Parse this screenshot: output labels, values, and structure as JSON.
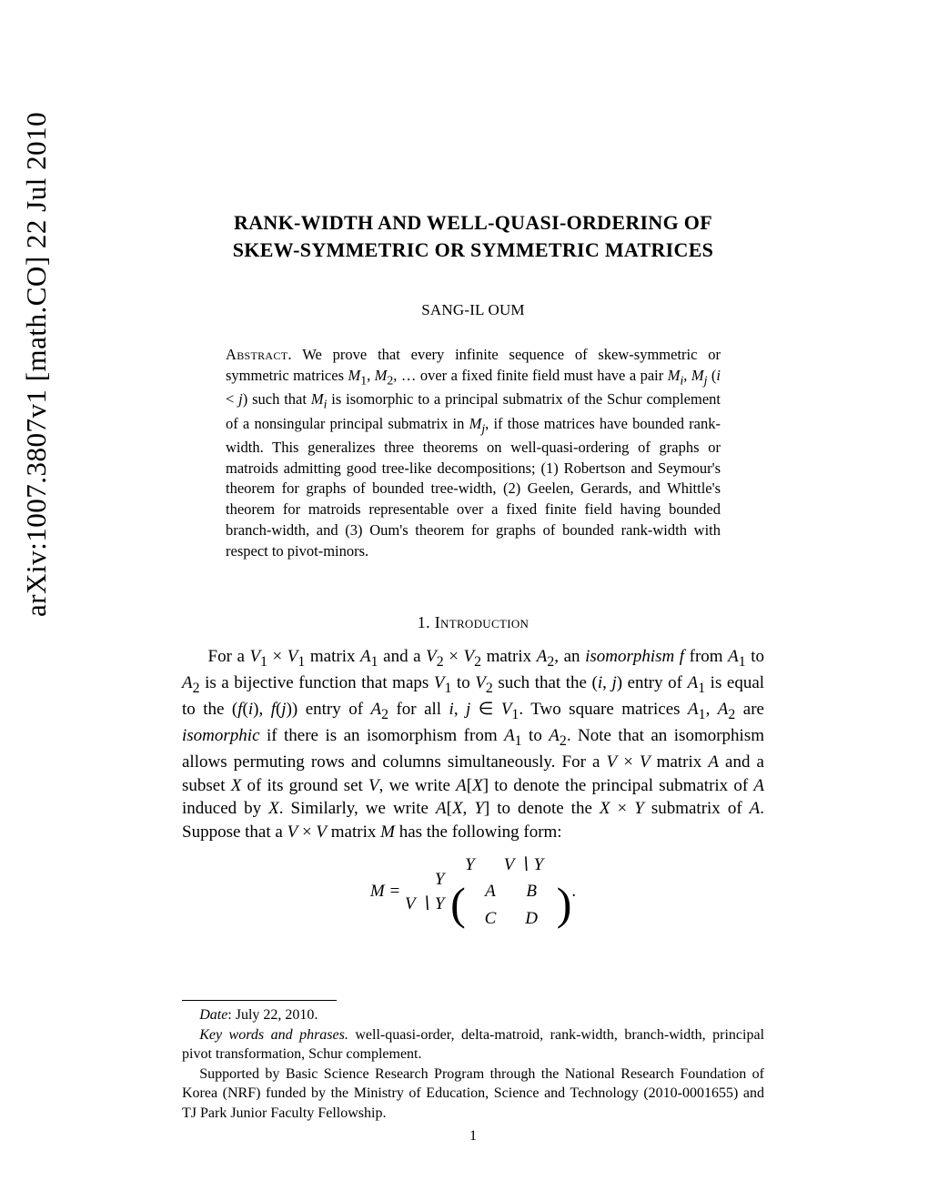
{
  "arxiv_stamp": "arXiv:1007.3807v1  [math.CO]  22 Jul 2010",
  "title_line1": "RANK-WIDTH AND WELL-QUASI-ORDERING OF",
  "title_line2": "SKEW-SYMMETRIC OR SYMMETRIC MATRICES",
  "author": "SANG-IL OUM",
  "abstract_label": "Abstract.",
  "abstract_text": "We prove that every infinite sequence of skew-symmetric or symmetric matrices M₁, M₂, … over a fixed finite field must have a pair Mᵢ, Mⱼ (i < j) such that Mᵢ is isomorphic to a principal submatrix of the Schur complement of a nonsingular principal submatrix in Mⱼ, if those matrices have bounded rank-width. This generalizes three theorems on well-quasi-ordering of graphs or matroids admitting good tree-like decompositions; (1) Robertson and Seymour's theorem for graphs of bounded tree-width, (2) Geelen, Gerards, and Whittle's theorem for matroids representable over a fixed finite field having bounded branch-width, and (3) Oum's theorem for graphs of bounded rank-width with respect to pivot-minors.",
  "section_number": "1.",
  "section_title": "Introduction",
  "intro_para": "For a V₁ × V₁ matrix A₁ and a V₂ × V₂ matrix A₂, an isomorphism f from A₁ to A₂ is a bijective function that maps V₁ to V₂ such that the (i, j) entry of A₁ is equal to the (f(i), f(j)) entry of A₂ for all i, j ∈ V₁. Two square matrices A₁, A₂ are isomorphic if there is an isomorphism from A₁ to A₂. Note that an isomorphism allows permuting rows and columns simultaneously. For a V × V matrix A and a subset X of its ground set V, we write A[X] to denote the principal submatrix of A induced by X. Similarly, we write A[X, Y] to denote the X × Y submatrix of A. Suppose that a V × V matrix M has the following form:",
  "matrix": {
    "lhs": "M =",
    "row_labels": [
      "Y",
      "V ∖ Y"
    ],
    "col_headers": [
      "Y",
      "V ∖ Y"
    ],
    "entries": [
      [
        "A",
        "B"
      ],
      [
        "C",
        "D"
      ]
    ],
    "trailing": "."
  },
  "footnotes": {
    "date_label": "Date",
    "date_value": ": July 22, 2010.",
    "keywords_label": "Key words and phrases.",
    "keywords_value": " well-quasi-order, delta-matroid, rank-width, branch-width, principal pivot transformation, Schur complement.",
    "funding": "Supported by Basic Science Research Program through the National Research Foundation of Korea (NRF) funded by the Ministry of Education, Science and Technology (2010-0001655) and TJ Park Junior Faculty Fellowship."
  },
  "page_number": "1",
  "colors": {
    "text": "#000000",
    "background": "#ffffff"
  }
}
